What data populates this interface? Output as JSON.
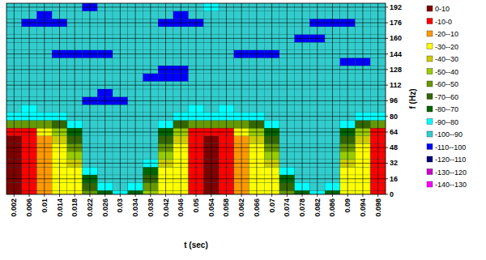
{
  "chart_data": {
    "type": "heatmap",
    "x_label": "t (sec)",
    "y_label": "f (Hz)",
    "xlim": [
      0,
      0.1
    ],
    "ylim": [
      0,
      196
    ],
    "xticks": [
      0.002,
      0.006,
      0.01,
      0.014,
      0.018,
      0.022,
      0.026,
      0.03,
      0.034,
      0.038,
      0.042,
      0.046,
      0.05,
      0.054,
      0.058,
      0.062,
      0.066,
      0.07,
      0.074,
      0.078,
      0.082,
      0.086,
      0.09,
      0.094,
      0.098
    ],
    "yticks": [
      0,
      16,
      32,
      48,
      64,
      80,
      96,
      112,
      128,
      144,
      160,
      176,
      192
    ],
    "grid": true,
    "legend": "right",
    "x": [
      0.002,
      0.006,
      0.01,
      0.014,
      0.018,
      0.022,
      0.026,
      0.03,
      0.034,
      0.038,
      0.042,
      0.046,
      0.05,
      0.054,
      0.058,
      0.062,
      0.066,
      0.07,
      0.074,
      0.078,
      0.082,
      0.086,
      0.09,
      0.094,
      0.098
    ],
    "y": [
      0,
      8,
      16,
      24,
      32,
      40,
      48,
      56,
      64,
      72,
      80,
      88,
      96,
      104,
      112,
      120,
      128,
      136,
      144,
      152,
      160,
      168,
      176,
      184,
      192
    ],
    "cells": [
      [
        5,
        5,
        5,
        5,
        5,
        5,
        5,
        5,
        -5,
        -60,
        -90,
        -95,
        -95,
        -95,
        -95,
        -95,
        -95,
        -95,
        -95,
        -95,
        -95,
        -95,
        -95,
        -95,
        -95
      ],
      [
        -5,
        -5,
        -5,
        -5,
        -5,
        -5,
        -5,
        -5,
        -5,
        -60,
        -90,
        -85,
        -95,
        -95,
        -95,
        -95,
        -95,
        -95,
        -95,
        -95,
        -95,
        -95,
        -105,
        -95,
        -95
      ],
      [
        -15,
        -15,
        -15,
        -15,
        -15,
        -15,
        -15,
        -15,
        -25,
        -60,
        -90,
        -95,
        -95,
        -95,
        -95,
        -95,
        -95,
        -95,
        -95,
        -95,
        -95,
        -95,
        -105,
        -105,
        -95
      ],
      [
        -25,
        -25,
        -25,
        -25,
        -25,
        -25,
        -25,
        -35,
        -45,
        -65,
        -90,
        -95,
        -95,
        -95,
        -95,
        -95,
        -95,
        -95,
        -105,
        -95,
        -95,
        -95,
        -105,
        -95,
        -95
      ],
      [
        -25,
        -25,
        -25,
        -25,
        -35,
        -45,
        -55,
        -65,
        -75,
        -85,
        -95,
        -95,
        -95,
        -95,
        -95,
        -95,
        -95,
        -95,
        -105,
        -95,
        -95,
        -95,
        -95,
        -95,
        -95
      ],
      [
        -55,
        -65,
        -75,
        -85,
        -95,
        -95,
        -95,
        -95,
        -95,
        -95,
        -95,
        -95,
        -105,
        -95,
        -95,
        -95,
        -95,
        -95,
        -105,
        -95,
        -95,
        -95,
        -95,
        -95,
        -105
      ],
      [
        -75,
        -85,
        -95,
        -95,
        -95,
        -95,
        -95,
        -95,
        -95,
        -95,
        -95,
        -95,
        -105,
        -105,
        -95,
        -95,
        -95,
        -95,
        -105,
        -95,
        -95,
        -95,
        -95,
        -95,
        -95
      ],
      [
        -85,
        -95,
        -95,
        -95,
        -95,
        -95,
        -95,
        -95,
        -95,
        -95,
        -95,
        -95,
        -105,
        -95,
        -95,
        -95,
        -95,
        -95,
        -95,
        -95,
        -95,
        -95,
        -95,
        -95,
        -95
      ],
      [
        -75,
        -85,
        -95,
        -95,
        -95,
        -95,
        -95,
        -95,
        -95,
        -95,
        -95,
        -95,
        -95,
        -95,
        -95,
        -95,
        -95,
        -95,
        -95,
        -95,
        -95,
        -95,
        -95,
        -95,
        -95
      ],
      [
        -45,
        -55,
        -65,
        -75,
        -85,
        -95,
        -95,
        -95,
        -95,
        -95,
        -95,
        -95,
        -95,
        -95,
        -95,
        -105,
        -95,
        -95,
        -95,
        -95,
        -95,
        -95,
        -95,
        -95,
        -95
      ],
      [
        -25,
        -25,
        -25,
        -25,
        -35,
        -45,
        -55,
        -65,
        -75,
        -85,
        -95,
        -95,
        -95,
        -95,
        -95,
        -105,
        -105,
        -95,
        -95,
        -95,
        -95,
        -95,
        -105,
        -95,
        -95
      ],
      [
        -25,
        -25,
        -25,
        -25,
        -25,
        -25,
        -25,
        -35,
        -45,
        -65,
        -90,
        -95,
        -95,
        -95,
        -95,
        -105,
        -105,
        -95,
        -95,
        -95,
        -95,
        -95,
        -105,
        -105,
        -95
      ],
      [
        -5,
        -5,
        -5,
        -5,
        -5,
        -5,
        -5,
        -5,
        -5,
        -60,
        -90,
        -85,
        -95,
        -95,
        -95,
        -95,
        -95,
        -95,
        -95,
        -95,
        -95,
        -95,
        -105,
        -95,
        -95
      ],
      [
        5,
        5,
        5,
        5,
        5,
        5,
        5,
        5,
        -5,
        -60,
        -90,
        -95,
        -95,
        -95,
        -95,
        -95,
        -95,
        -95,
        -95,
        -95,
        -95,
        -95,
        -95,
        -95,
        -85
      ],
      [
        -5,
        -5,
        -5,
        -5,
        -5,
        -5,
        -5,
        -5,
        -5,
        -60,
        -90,
        -85,
        -95,
        -95,
        -95,
        -95,
        -95,
        -95,
        -95,
        -95,
        -95,
        -95,
        -95,
        -95,
        -95
      ],
      [
        -15,
        -15,
        -15,
        -15,
        -15,
        -15,
        -15,
        -15,
        -25,
        -60,
        -90,
        -95,
        -95,
        -95,
        -95,
        -95,
        -95,
        -95,
        -105,
        -95,
        -95,
        -95,
        -95,
        -95,
        -95
      ],
      [
        -25,
        -25,
        -25,
        -25,
        -25,
        -25,
        -25,
        -35,
        -45,
        -65,
        -90,
        -95,
        -95,
        -95,
        -95,
        -95,
        -95,
        -95,
        -105,
        -95,
        -95,
        -95,
        -95,
        -95,
        -95
      ],
      [
        -25,
        -25,
        -25,
        -25,
        -35,
        -45,
        -55,
        -65,
        -75,
        -85,
        -95,
        -95,
        -95,
        -95,
        -95,
        -95,
        -95,
        -95,
        -105,
        -95,
        -95,
        -95,
        -95,
        -95,
        -95
      ],
      [
        -55,
        -65,
        -75,
        -85,
        -95,
        -95,
        -95,
        -95,
        -95,
        -95,
        -95,
        -95,
        -95,
        -95,
        -95,
        -95,
        -95,
        -95,
        -95,
        -95,
        -95,
        -95,
        -95,
        -95,
        -95
      ],
      [
        -75,
        -85,
        -95,
        -95,
        -95,
        -95,
        -95,
        -95,
        -95,
        -95,
        -95,
        -95,
        -95,
        -95,
        -95,
        -95,
        -95,
        -95,
        -95,
        -95,
        -105,
        -95,
        -95,
        -95,
        -95
      ],
      [
        -85,
        -95,
        -95,
        -95,
        -95,
        -95,
        -95,
        -95,
        -95,
        -95,
        -95,
        -95,
        -95,
        -95,
        -95,
        -95,
        -95,
        -95,
        -95,
        -95,
        -105,
        -95,
        -105,
        -95,
        -95
      ],
      [
        -75,
        -85,
        -95,
        -95,
        -95,
        -95,
        -95,
        -95,
        -95,
        -95,
        -95,
        -95,
        -95,
        -95,
        -95,
        -95,
        -95,
        -95,
        -95,
        -95,
        -95,
        -95,
        -105,
        -95,
        -95
      ],
      [
        -25,
        -25,
        -25,
        -25,
        -35,
        -45,
        -55,
        -65,
        -75,
        -85,
        -95,
        -95,
        -95,
        -95,
        -95,
        -95,
        -95,
        -105,
        -95,
        -95,
        -95,
        -95,
        -105,
        -95,
        -95
      ],
      [
        -25,
        -25,
        -25,
        -25,
        -25,
        -25,
        -25,
        -35,
        -45,
        -65,
        -90,
        -95,
        -95,
        -95,
        -95,
        -95,
        -95,
        -105,
        -95,
        -95,
        -95,
        -95,
        -95,
        -95,
        -95
      ],
      [
        -5,
        -5,
        -5,
        -5,
        -5,
        -5,
        -5,
        -5,
        -5,
        -60,
        -90,
        -95,
        -95,
        -95,
        -95,
        -95,
        -95,
        -95,
        -95,
        -95,
        -95,
        -95,
        -95,
        -95,
        -95
      ]
    ],
    "color_bar": {
      "bands": [
        {
          "label": "0-10",
          "min": 0,
          "max": 10,
          "color": "#800000"
        },
        {
          "label": "-10-0",
          "min": -10,
          "max": 0,
          "color": "#ff0000"
        },
        {
          "label": "-20--10",
          "min": -20,
          "max": -10,
          "color": "#ff9900"
        },
        {
          "label": "-30--20",
          "min": -30,
          "max": -20,
          "color": "#ffff00"
        },
        {
          "label": "-40--30",
          "min": -40,
          "max": -30,
          "color": "#cccc00"
        },
        {
          "label": "-50--40",
          "min": -50,
          "max": -40,
          "color": "#99cc00"
        },
        {
          "label": "-60--50",
          "min": -60,
          "max": -50,
          "color": "#669900"
        },
        {
          "label": "-70--60",
          "min": -70,
          "max": -60,
          "color": "#336600"
        },
        {
          "label": "-80--70",
          "min": -80,
          "max": -70,
          "color": "#006600"
        },
        {
          "label": "-90--80",
          "min": -90,
          "max": -80,
          "color": "#00ffff"
        },
        {
          "label": "-100--90",
          "min": -100,
          "max": -90,
          "color": "#33cccc"
        },
        {
          "label": "-110--100",
          "min": -110,
          "max": -100,
          "color": "#0000ff"
        },
        {
          "label": "-120--110",
          "min": -120,
          "max": -110,
          "color": "#000080"
        },
        {
          "label": "-130--120",
          "min": -130,
          "max": -120,
          "color": "#cc00cc"
        },
        {
          "label": "-140--130",
          "min": -140,
          "max": -130,
          "color": "#ff00ff"
        }
      ]
    }
  }
}
